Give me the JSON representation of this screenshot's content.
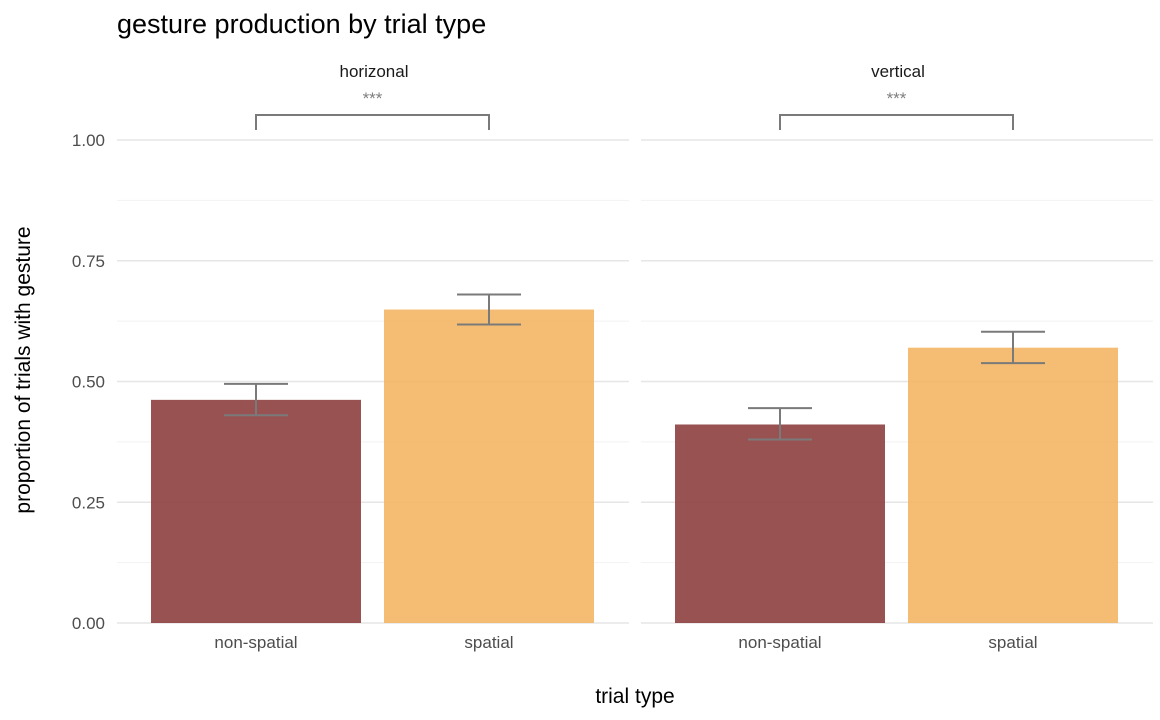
{
  "chart_data": {
    "type": "bar",
    "title": "gesture production by trial type",
    "xlabel": "trial type",
    "ylabel": "proportion of trials with gesture",
    "ylim": [
      0,
      1.12
    ],
    "yticks": [
      0,
      0.25,
      0.5,
      0.75,
      1.0
    ],
    "ytick_labels": [
      "0.00",
      "0.25",
      "0.50",
      "0.75",
      "1.00"
    ],
    "grid": true,
    "categories": [
      "non-spatial",
      "spatial"
    ],
    "colors": {
      "non-spatial": "#8b3a3a",
      "spatial": "#f3b460"
    },
    "facets": [
      {
        "label": "horizonal",
        "values": [
          0.462,
          0.649
        ],
        "error_low": [
          0.43,
          0.618
        ],
        "error_high": [
          0.495,
          0.68
        ],
        "significance": "***"
      },
      {
        "label": "vertical",
        "values": [
          0.411,
          0.57
        ],
        "error_low": [
          0.38,
          0.538
        ],
        "error_high": [
          0.445,
          0.603
        ],
        "significance": "***"
      }
    ]
  }
}
